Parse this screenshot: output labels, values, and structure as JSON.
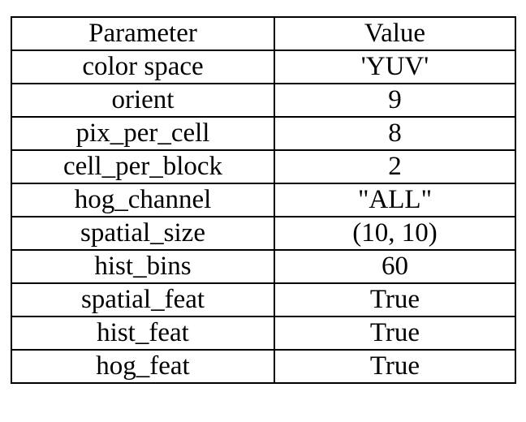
{
  "table": {
    "headers": [
      "Parameter",
      "Value"
    ],
    "rows": [
      [
        "color space",
        "'YUV'"
      ],
      [
        "orient",
        "9"
      ],
      [
        "pix_per_cell",
        "8"
      ],
      [
        "cell_per_block",
        "2"
      ],
      [
        "hog_channel",
        "\"ALL\""
      ],
      [
        "spatial_size",
        "(10, 10)"
      ],
      [
        "hist_bins",
        "60"
      ],
      [
        "spatial_feat",
        "True"
      ],
      [
        "hist_feat",
        "True"
      ],
      [
        "hog_feat",
        "True"
      ]
    ]
  }
}
